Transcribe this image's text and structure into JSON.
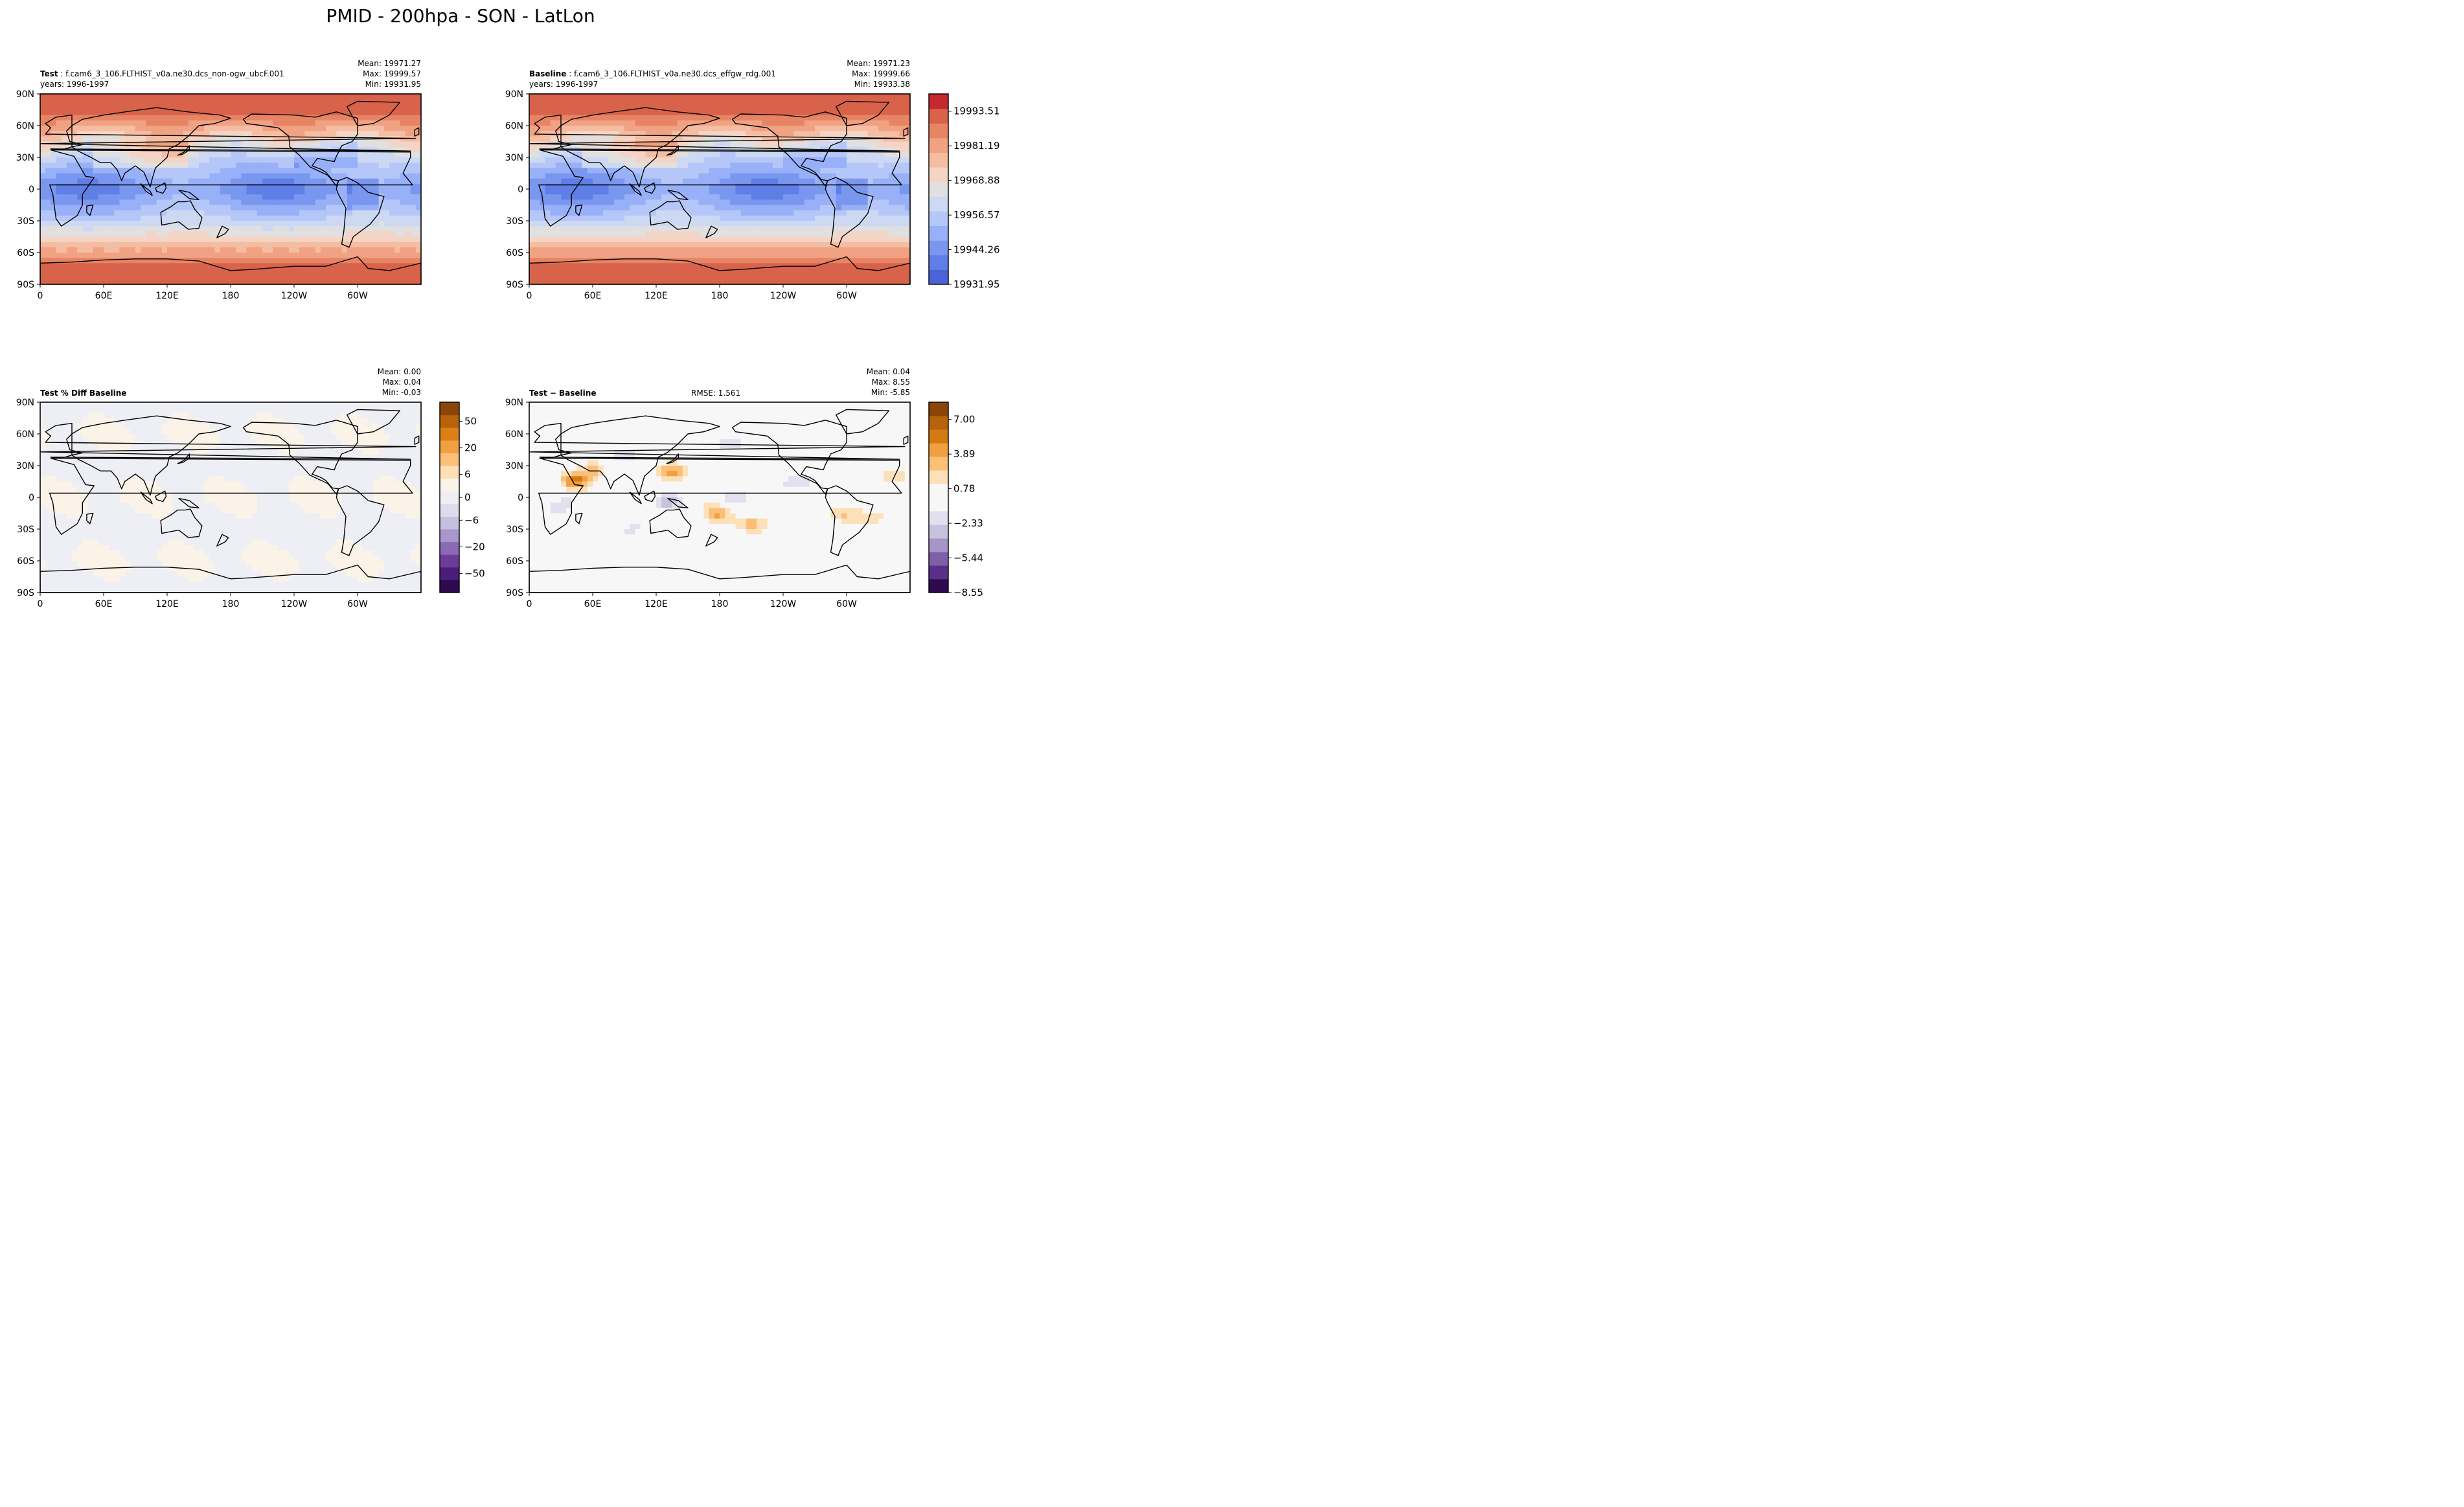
{
  "figure_title": "PMID - 200hpa - SON - LatLon",
  "chart_data": [
    {
      "type": "heatmap",
      "panel": "test",
      "title_bold": "Test",
      "title_rest": ": f.cam6_3_106.FLTHIST_v0a.ne30.dcs_non-ogw_ubcF.001",
      "subtitle": "years: 1996-1997",
      "stats": [
        "Mean: 19971.27",
        "Max: 19999.57",
        "Min: 19931.95"
      ],
      "x_ticks": [
        "0",
        "60E",
        "120E",
        "180",
        "120W",
        "60W"
      ],
      "y_ticks": [
        "90N",
        "60N",
        "30N",
        "0",
        "30S",
        "60S",
        "90S"
      ],
      "xlim": [
        0,
        360
      ],
      "ylim": [
        -90,
        90
      ],
      "zonal_field_example": [
        {
          "lat": 80,
          "value": 19995
        },
        {
          "lat": 50,
          "value": 19985
        },
        {
          "lat": 25,
          "value": 19968
        },
        {
          "lat": 0,
          "value": 19945
        },
        {
          "lat": -25,
          "value": 19970
        },
        {
          "lat": -50,
          "value": 19985
        },
        {
          "lat": -80,
          "value": 19995
        }
      ]
    },
    {
      "type": "heatmap",
      "panel": "baseline",
      "title_bold": "Baseline",
      "title_rest": ": f.cam6_3_106.FLTHIST_v0a.ne30.dcs_effgw_rdg.001",
      "subtitle": "years: 1996-1997",
      "stats": [
        "Mean: 19971.23",
        "Max: 19999.66",
        "Min: 19933.38"
      ],
      "x_ticks": [
        "0",
        "60E",
        "120E",
        "180",
        "120W",
        "60W"
      ],
      "y_ticks": [
        "90N",
        "60N",
        "30N",
        "0",
        "30S",
        "60S",
        "90S"
      ],
      "xlim": [
        0,
        360
      ],
      "ylim": [
        -90,
        90
      ],
      "colorbar": {
        "labels": [
          "19993.51",
          "19981.19",
          "19968.88",
          "19956.57",
          "19944.26",
          "19931.95"
        ],
        "colors": [
          "#4a64d8",
          "#5f7ee6",
          "#7a97f0",
          "#97b0f8",
          "#b4c7f8",
          "#cdd8f2",
          "#e0e0e0",
          "#f4d4c4",
          "#f5bda2",
          "#f0a282",
          "#e78464",
          "#d9624b",
          "#c3292f"
        ]
      }
    },
    {
      "type": "heatmap",
      "panel": "pct_diff",
      "title_bold": "Test % Diff Baseline",
      "stats": [
        "Mean:  0.00",
        "Max:  0.04",
        "Min: -0.03"
      ],
      "x_ticks": [
        "0",
        "60E",
        "120E",
        "180",
        "120W",
        "60W"
      ],
      "y_ticks": [
        "90N",
        "60N",
        "30N",
        "0",
        "30S",
        "60S",
        "90S"
      ],
      "xlim": [
        0,
        360
      ],
      "ylim": [
        -90,
        90
      ],
      "colorbar": {
        "labels": [
          "50",
          "20",
          "6",
          "0",
          "−6",
          "−20",
          "−50"
        ],
        "colors": [
          "#2d0a4e",
          "#4b1c7a",
          "#6b3d99",
          "#8a6ab2",
          "#a996cb",
          "#c7bfde",
          "#dedcec",
          "#eeeef4",
          "#fbf3e8",
          "#fde0b8",
          "#fbbf78",
          "#f0a040",
          "#dc7f16",
          "#b8620b",
          "#8c4508"
        ]
      }
    },
    {
      "type": "heatmap",
      "panel": "diff",
      "title_bold": "Test − Baseline",
      "rmse": "RMSE: 1.561",
      "stats": [
        "Mean:  0.04",
        "Max:  8.55",
        "Min: -5.85"
      ],
      "x_ticks": [
        "0",
        "60E",
        "120E",
        "180",
        "120W",
        "60W"
      ],
      "y_ticks": [
        "90N",
        "60N",
        "30N",
        "0",
        "30S",
        "60S",
        "90S"
      ],
      "xlim": [
        0,
        360
      ],
      "ylim": [
        -90,
        90
      ],
      "colorbar": {
        "labels": [
          "7.00",
          "3.89",
          "0.78",
          "−2.33",
          "−5.44",
          "−8.55"
        ],
        "colors": [
          "#2d0a4e",
          "#5a2e8a",
          "#7f5fa8",
          "#a596c6",
          "#c7c2de",
          "#e2e0ee",
          "#f7f7f7",
          "#f7f7f7",
          "#fde0b8",
          "#fbbf78",
          "#f0a040",
          "#d57912",
          "#b8620b",
          "#8c4508"
        ]
      }
    }
  ]
}
